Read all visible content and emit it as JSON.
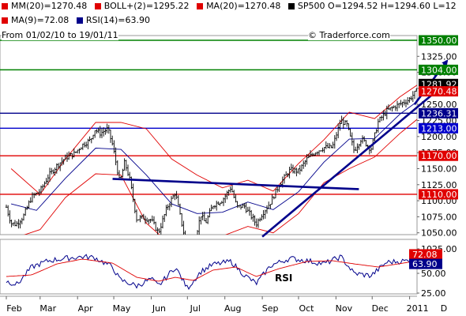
{
  "header": {
    "date_range": "From 01/02/10 to 19/01/11",
    "watermark": "© Traderforce.com",
    "legend_top": [
      {
        "text": "MM(20)=1270.48",
        "color": "#e00000"
      },
      {
        "text": "BOLL+(2)=1295.22",
        "color": "#e00000"
      },
      {
        "text": "MA(20)=1270.48",
        "color": "#e00000"
      },
      {
        "text": "SP500 O=1294.52 H=1294.60 L=12",
        "color": "#000000"
      }
    ],
    "legend_second": [
      {
        "text": "MA(9)=72.08",
        "color": "#e00000"
      },
      {
        "text": "RSI(14)=63.90",
        "color": "#00008b"
      }
    ]
  },
  "chart_data": [
    {
      "type": "candlestick",
      "title": "SP500",
      "xlabel": "",
      "ylabel": "",
      "x_tick_labels": [
        "Feb",
        "Mar",
        "Apr",
        "May",
        "Jun",
        "Jul",
        "Aug",
        "Sep",
        "Oct",
        "Nov",
        "Dec",
        "2011",
        "D"
      ],
      "y_tick_labels": [
        "1325.00",
        "1300.00",
        "1275.00",
        "1250.00",
        "1225.00",
        "1200.00",
        "1175.00",
        "1150.00",
        "1125.00",
        "1100.00",
        "1075.00",
        "1050.00",
        "1025.00"
      ],
      "ylim": [
        1014,
        1362
      ],
      "close_series": [
        [
          "2010-02-01",
          1090
        ],
        [
          "2010-02-05",
          1065
        ],
        [
          "2010-02-09",
          1063
        ],
        [
          "2010-02-15",
          1075
        ],
        [
          "2010-02-22",
          1106
        ],
        [
          "2010-03-01",
          1115
        ],
        [
          "2010-03-08",
          1139
        ],
        [
          "2010-03-15",
          1155
        ],
        [
          "2010-03-22",
          1167
        ],
        [
          "2010-03-29",
          1173
        ],
        [
          "2010-04-05",
          1187
        ],
        [
          "2010-04-12",
          1195
        ],
        [
          "2010-04-15",
          1211
        ],
        [
          "2010-04-20",
          1205
        ],
        [
          "2010-04-26",
          1212
        ],
        [
          "2010-04-30",
          1187
        ],
        [
          "2010-05-06",
          1128
        ],
        [
          "2010-05-10",
          1160
        ],
        [
          "2010-05-14",
          1135
        ],
        [
          "2010-05-20",
          1071
        ],
        [
          "2010-05-25",
          1074
        ],
        [
          "2010-06-01",
          1070
        ],
        [
          "2010-06-07",
          1050
        ],
        [
          "2010-06-14",
          1089
        ],
        [
          "2010-06-21",
          1113
        ],
        [
          "2010-06-25",
          1076
        ],
        [
          "2010-07-01",
          1022
        ],
        [
          "2010-07-06",
          1028
        ],
        [
          "2010-07-12",
          1078
        ],
        [
          "2010-07-16",
          1065
        ],
        [
          "2010-07-22",
          1093
        ],
        [
          "2010-07-30",
          1101
        ],
        [
          "2010-08-06",
          1121
        ],
        [
          "2010-08-11",
          1090
        ],
        [
          "2010-08-17",
          1092
        ],
        [
          "2010-08-27",
          1064
        ],
        [
          "2010-09-01",
          1080
        ],
        [
          "2010-09-08",
          1098
        ],
        [
          "2010-09-15",
          1125
        ],
        [
          "2010-09-24",
          1148
        ],
        [
          "2010-10-01",
          1146
        ],
        [
          "2010-10-08",
          1165
        ],
        [
          "2010-10-15",
          1176
        ],
        [
          "2010-10-22",
          1183
        ],
        [
          "2010-10-29",
          1183
        ],
        [
          "2010-11-05",
          1225
        ],
        [
          "2010-11-10",
          1218
        ],
        [
          "2010-11-16",
          1178
        ],
        [
          "2010-11-22",
          1197
        ],
        [
          "2010-11-30",
          1180
        ],
        [
          "2010-12-06",
          1223
        ],
        [
          "2010-12-13",
          1240
        ],
        [
          "2010-12-20",
          1247
        ],
        [
          "2010-12-31",
          1257
        ],
        [
          "2011-01-07",
          1271
        ],
        [
          "2011-01-14",
          1293
        ],
        [
          "2011-01-19",
          1282
        ]
      ],
      "series": [
        {
          "name": "MA(20)",
          "color": "#00008b",
          "values": [
            [
              "2010-02-05",
              1095
            ],
            [
              "2010-02-26",
              1085
            ],
            [
              "2010-03-22",
              1135
            ],
            [
              "2010-04-16",
              1182
            ],
            [
              "2010-05-07",
              1180
            ],
            [
              "2010-05-28",
              1140
            ],
            [
              "2010-06-18",
              1095
            ],
            [
              "2010-07-09",
              1080
            ],
            [
              "2010-07-30",
              1082
            ],
            [
              "2010-08-20",
              1098
            ],
            [
              "2010-09-10",
              1086
            ],
            [
              "2010-10-01",
              1114
            ],
            [
              "2010-10-22",
              1160
            ],
            [
              "2010-11-12",
              1196
            ],
            [
              "2010-12-03",
              1197
            ],
            [
              "2010-12-24",
              1235
            ],
            [
              "2011-01-19",
              1270.48
            ]
          ]
        },
        {
          "name": "BOLL+(2)",
          "color": "#e00000",
          "values": [
            [
              "2010-02-05",
              1150
            ],
            [
              "2010-03-01",
              1110
            ],
            [
              "2010-03-22",
              1165
            ],
            [
              "2010-04-16",
              1222
            ],
            [
              "2010-05-07",
              1222
            ],
            [
              "2010-05-28",
              1212
            ],
            [
              "2010-06-18",
              1165
            ],
            [
              "2010-07-09",
              1140
            ],
            [
              "2010-07-30",
              1120
            ],
            [
              "2010-08-20",
              1132
            ],
            [
              "2010-09-10",
              1115
            ],
            [
              "2010-10-01",
              1158
            ],
            [
              "2010-10-22",
              1195
            ],
            [
              "2010-11-12",
              1238
            ],
            [
              "2010-12-03",
              1228
            ],
            [
              "2010-12-24",
              1262
            ],
            [
              "2011-01-19",
              1295.22
            ]
          ]
        },
        {
          "name": "BOLL-(2)",
          "color": "#e00000",
          "values": [
            [
              "2010-02-05",
              1040
            ],
            [
              "2010-03-01",
              1055
            ],
            [
              "2010-03-22",
              1105
            ],
            [
              "2010-04-16",
              1142
            ],
            [
              "2010-05-07",
              1140
            ],
            [
              "2010-05-28",
              1065
            ],
            [
              "2010-06-18",
              1030
            ],
            [
              "2010-07-09",
              1015
            ],
            [
              "2010-07-30",
              1045
            ],
            [
              "2010-08-20",
              1060
            ],
            [
              "2010-09-10",
              1050
            ],
            [
              "2010-10-01",
              1080
            ],
            [
              "2010-10-22",
              1128
            ],
            [
              "2010-11-12",
              1150
            ],
            [
              "2010-12-03",
              1168
            ],
            [
              "2010-12-24",
              1205
            ],
            [
              "2011-01-19",
              1245
            ]
          ]
        }
      ],
      "horizontal_levels": [
        {
          "value": 1350.0,
          "label": "1350.00",
          "color": "#008000"
        },
        {
          "value": 1304.0,
          "label": "1304.00",
          "color": "#008000"
        },
        {
          "value": 1281.92,
          "label": "1281.92",
          "color": "#000000"
        },
        {
          "value": 1270.48,
          "label": "1270.48",
          "color": "#e00000"
        },
        {
          "value": 1236.31,
          "label": "1236.31",
          "color": "#00008b"
        },
        {
          "value": 1213.0,
          "label": "1213.00",
          "color": "#0000cc"
        },
        {
          "value": 1170.0,
          "label": "1170.00",
          "color": "#e00000"
        },
        {
          "value": 1110.0,
          "label": "1110.00",
          "color": "#e00000"
        }
      ],
      "trendlines": [
        {
          "from": [
            "2010-04-30",
            1134
          ],
          "to": [
            "2010-11-20",
            1118
          ],
          "color": "#00008b"
        },
        {
          "from": [
            "2010-09-01",
            1044
          ],
          "to": [
            "2011-01-31",
            1283
          ],
          "color": "#00008b"
        },
        {
          "from": [
            "2011-01-05",
            1250
          ],
          "to": [
            "2011-02-01",
            1318
          ],
          "color": "#00008b",
          "arrow": true
        }
      ]
    },
    {
      "type": "line",
      "title": "",
      "annotation": "RSI",
      "y_tick_labels": [
        "50.00",
        "25.00"
      ],
      "ylim": [
        20,
        90
      ],
      "series": [
        {
          "name": "RSI(14)",
          "color": "#00008b",
          "values": [
            [
              "2010-02-01",
              40
            ],
            [
              "2010-02-10",
              36
            ],
            [
              "2010-02-22",
              58
            ],
            [
              "2010-03-08",
              66
            ],
            [
              "2010-03-22",
              69
            ],
            [
              "2010-04-05",
              71
            ],
            [
              "2010-04-15",
              70
            ],
            [
              "2010-04-30",
              58
            ],
            [
              "2010-05-06",
              42
            ],
            [
              "2010-05-20",
              34
            ],
            [
              "2010-06-01",
              43
            ],
            [
              "2010-06-07",
              34
            ],
            [
              "2010-06-21",
              58
            ],
            [
              "2010-07-01",
              31
            ],
            [
              "2010-07-12",
              52
            ],
            [
              "2010-07-22",
              61
            ],
            [
              "2010-08-06",
              65
            ],
            [
              "2010-08-17",
              48
            ],
            [
              "2010-08-27",
              37
            ],
            [
              "2010-09-08",
              60
            ],
            [
              "2010-09-24",
              69
            ],
            [
              "2010-10-08",
              66
            ],
            [
              "2010-10-22",
              62
            ],
            [
              "2010-11-05",
              71
            ],
            [
              "2010-11-16",
              50
            ],
            [
              "2010-11-30",
              47
            ],
            [
              "2010-12-13",
              64
            ],
            [
              "2010-12-31",
              66
            ],
            [
              "2011-01-07",
              70
            ],
            [
              "2011-01-14",
              74
            ],
            [
              "2011-01-19",
              63.9
            ]
          ]
        },
        {
          "name": "MA(9)",
          "color": "#e00000",
          "values": [
            [
              "2010-02-01",
              46
            ],
            [
              "2010-02-22",
              48
            ],
            [
              "2010-03-15",
              62
            ],
            [
              "2010-04-05",
              68
            ],
            [
              "2010-04-30",
              63
            ],
            [
              "2010-05-20",
              45
            ],
            [
              "2010-06-07",
              40
            ],
            [
              "2010-06-21",
              45
            ],
            [
              "2010-07-06",
              41
            ],
            [
              "2010-07-22",
              54
            ],
            [
              "2010-08-10",
              58
            ],
            [
              "2010-08-27",
              46
            ],
            [
              "2010-09-15",
              56
            ],
            [
              "2010-10-08",
              65
            ],
            [
              "2010-10-29",
              66
            ],
            [
              "2010-11-16",
              62
            ],
            [
              "2010-12-06",
              58
            ],
            [
              "2010-12-31",
              64
            ],
            [
              "2011-01-19",
              72.08
            ]
          ]
        }
      ],
      "levels": [
        {
          "value": 72.08,
          "label": "72.08",
          "color": "#e00000"
        },
        {
          "value": 63.9,
          "label": "63.90",
          "color": "#00008b"
        }
      ]
    }
  ]
}
